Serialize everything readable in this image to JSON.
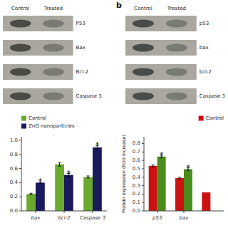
{
  "chart_data": [
    {
      "type": "blot",
      "x": [
        "Control",
        "Treated"
      ],
      "categories": [
        "P53",
        "Bax",
        "Bcl-2",
        "Caspase 3"
      ]
    },
    {
      "type": "blot",
      "title": "b",
      "x": [
        "Control",
        "Treated"
      ],
      "categories": [
        "p53",
        "bax",
        "bcl-2",
        "Caspase 3"
      ]
    },
    {
      "type": "bar",
      "categories": [
        "bax",
        "bcl-2",
        "Caspase 3"
      ],
      "series": [
        {
          "name": "Control",
          "color": "#6aaa2e",
          "values": [
            0.24,
            0.66,
            0.48
          ],
          "errors": [
            0.01,
            0.025,
            0.015
          ]
        },
        {
          "name": "ZnO nanoparticles",
          "color": "#1a1a5e",
          "values": [
            0.4,
            0.51,
            0.9
          ],
          "errors": [
            0.012,
            0.02,
            0.025
          ],
          "annotations": [
            "*",
            "*",
            "*"
          ]
        }
      ],
      "ylim": [
        0,
        1.05
      ],
      "yticks": [
        {
          "value": 0.0,
          "label": "0.0"
        },
        0.2,
        0.4,
        0.6,
        0.8,
        {
          "value": 1.0,
          "label": "1.0"
        }
      ],
      "grid": false,
      "legend": "upper left"
    },
    {
      "type": "bar",
      "y_label": "Protein expression (Fold Increase)",
      "categories": [
        "p53",
        "bax",
        null
      ],
      "series": [
        {
          "name": "Control",
          "color": "#cc1111",
          "values": [
            0.535,
            0.39,
            0.22
          ],
          "errors": [
            0.012,
            0.01,
            null
          ]
        },
        {
          "color": "#4a8c1c",
          "values": [
            0.645,
            0.495,
            null
          ],
          "errors": [
            0.015,
            0.015,
            null
          ],
          "annotations": [
            "*",
            "*",
            null
          ]
        }
      ],
      "ylim": [
        0,
        0.88
      ],
      "yticks": [
        {
          "value": 0.0,
          "label": "0.0"
        },
        0.1,
        0.2,
        0.3,
        0.4,
        0.5,
        0.6,
        0.7,
        0.8
      ],
      "grid": false,
      "legend": "upper right"
    }
  ]
}
